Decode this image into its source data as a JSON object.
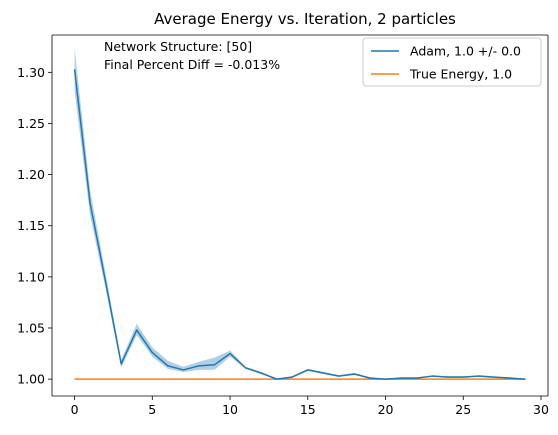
{
  "chart_data": {
    "type": "line",
    "title": "Average Energy vs. Iteration, 2 particles",
    "xlabel": "",
    "ylabel": "",
    "xlim": [
      -1.45,
      30.45
    ],
    "ylim": [
      0.9835,
      1.3365
    ],
    "x_ticks": [
      0,
      5,
      10,
      15,
      20,
      25,
      30
    ],
    "y_ticks": [
      1.0,
      1.05,
      1.1,
      1.15,
      1.2,
      1.25,
      1.3
    ],
    "x_tick_labels": [
      "0",
      "5",
      "10",
      "15",
      "20",
      "25",
      "30"
    ],
    "y_tick_labels": [
      "1.00",
      "1.05",
      "1.10",
      "1.15",
      "1.20",
      "1.25",
      "1.30"
    ],
    "annotations": [
      "Network Structure: [50]",
      "Final Percent Diff = -0.013%"
    ],
    "legend_position": "top-right",
    "x": [
      0,
      1,
      2,
      3,
      4,
      5,
      6,
      7,
      8,
      9,
      10,
      11,
      12,
      13,
      14,
      15,
      16,
      17,
      18,
      19,
      20,
      21,
      22,
      23,
      24,
      25,
      26,
      27,
      28,
      29
    ],
    "series": [
      {
        "name": "Adam, 1.0 +/- 0.0",
        "color": "#1f77b4",
        "values": [
          1.303,
          1.172,
          1.095,
          1.015,
          1.048,
          1.026,
          1.013,
          1.009,
          1.013,
          1.014,
          1.025,
          1.011,
          1.006,
          1.0,
          1.002,
          1.009,
          1.006,
          1.003,
          1.005,
          1.001,
          1.0,
          1.001,
          1.001,
          1.003,
          1.002,
          1.002,
          1.003,
          1.002,
          1.001,
          1.0
        ],
        "band_lower": [
          1.282,
          1.16,
          1.088,
          1.011,
          1.043,
          1.022,
          1.01,
          1.007,
          1.009,
          1.009,
          1.022,
          1.01,
          1.005,
          1.0,
          1.002,
          1.008,
          1.005,
          1.002,
          1.004,
          1.001,
          1.0,
          1.001,
          1.001,
          1.002,
          1.002,
          1.002,
          1.002,
          1.001,
          1.001,
          1.0
        ],
        "band_upper": [
          1.324,
          1.185,
          1.103,
          1.019,
          1.054,
          1.031,
          1.018,
          1.012,
          1.017,
          1.021,
          1.028,
          1.012,
          1.007,
          1.0,
          1.003,
          1.01,
          1.007,
          1.004,
          1.006,
          1.002,
          1.0,
          1.002,
          1.002,
          1.003,
          1.003,
          1.003,
          1.003,
          1.002,
          1.002,
          1.0
        ]
      },
      {
        "name": "True Energy, 1.0",
        "color": "#ff7f0e",
        "values": [
          1.0,
          1.0,
          1.0,
          1.0,
          1.0,
          1.0,
          1.0,
          1.0,
          1.0,
          1.0,
          1.0,
          1.0,
          1.0,
          1.0,
          1.0,
          1.0,
          1.0,
          1.0,
          1.0,
          1.0,
          1.0,
          1.0,
          1.0,
          1.0,
          1.0,
          1.0,
          1.0,
          1.0,
          1.0,
          1.0
        ]
      }
    ]
  }
}
